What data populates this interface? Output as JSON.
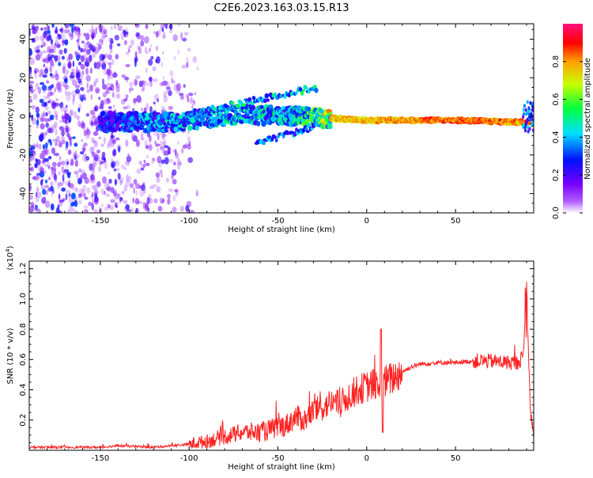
{
  "title": "C2E6.2023.163.03.15.R13",
  "chart_data": [
    {
      "type": "heatmap",
      "name": "spectrogram",
      "xlabel": "Height of straight line (km)",
      "ylabel": "Frequency (Hz)",
      "xlim": [
        -190,
        94
      ],
      "ylim": [
        -50,
        48
      ],
      "xticks": [
        -150,
        -100,
        -50,
        0,
        50
      ],
      "yticks": [
        -40,
        -20,
        0,
        20,
        40
      ],
      "colorbar": {
        "label": "Normalized spectral amplitude",
        "range": [
          0.0,
          1.0
        ],
        "ticks": [
          "0.0",
          "0.2",
          "0.4",
          "0.6",
          "0.8"
        ],
        "tick_values": [
          0.0,
          0.2,
          0.4,
          0.6,
          0.8
        ],
        "colors": [
          "#ffffff",
          "#7a00ff",
          "#0010ff",
          "#00e0ff",
          "#00ff40",
          "#c8ff00",
          "#ffa000",
          "#ff0000",
          "#ff1080"
        ]
      },
      "ridge": {
        "description_points": [
          {
            "x": -145,
            "y": -3,
            "amp": 0.35
          },
          {
            "x": -110,
            "y": -3,
            "amp": 0.45
          },
          {
            "x": -70,
            "y": 1,
            "amp": 0.5
          },
          {
            "x": -40,
            "y": 0,
            "amp": 0.5
          },
          {
            "x": -20,
            "y": -1,
            "amp": 0.8
          },
          {
            "x": 0,
            "y": -2,
            "amp": 0.8
          },
          {
            "x": 50,
            "y": -2,
            "amp": 0.9
          },
          {
            "x": 85,
            "y": -3,
            "amp": 0.85
          }
        ]
      }
    },
    {
      "type": "line",
      "name": "snr",
      "xlabel": "Height of straight line (km)",
      "ylabel": "SNR (10 * v/v)",
      "scale_label": "(x10",
      "scale_exp": "4",
      "scale_suffix": ")",
      "xlim": [
        -190,
        94
      ],
      "ylim": [
        0,
        1.25
      ],
      "xticks": [
        -150,
        -100,
        -50,
        0,
        50
      ],
      "yticks": [
        0.2,
        0.4,
        0.6,
        0.8,
        1.0,
        1.2
      ],
      "color": "#ff2020",
      "series": [
        {
          "x": [
            -190,
            -170,
            -150,
            -140,
            -120,
            -110,
            -100,
            -90,
            -80,
            -70,
            -60,
            -50,
            -45,
            -40,
            -35,
            -30,
            -25,
            -20,
            -15,
            -10,
            -5,
            0,
            5,
            8,
            10,
            15,
            20,
            25,
            30,
            40,
            50,
            60,
            70,
            80,
            85,
            88,
            90,
            92,
            94
          ],
          "y": [
            0.02,
            0.02,
            0.02,
            0.03,
            0.02,
            0.03,
            0.04,
            0.06,
            0.09,
            0.12,
            0.12,
            0.15,
            0.17,
            0.22,
            0.2,
            0.26,
            0.28,
            0.32,
            0.3,
            0.36,
            0.4,
            0.42,
            0.44,
            0.4,
            0.45,
            0.48,
            0.52,
            0.55,
            0.57,
            0.58,
            0.58,
            0.59,
            0.59,
            0.58,
            0.58,
            0.62,
            1.0,
            0.3,
            0.08
          ]
        }
      ]
    }
  ]
}
